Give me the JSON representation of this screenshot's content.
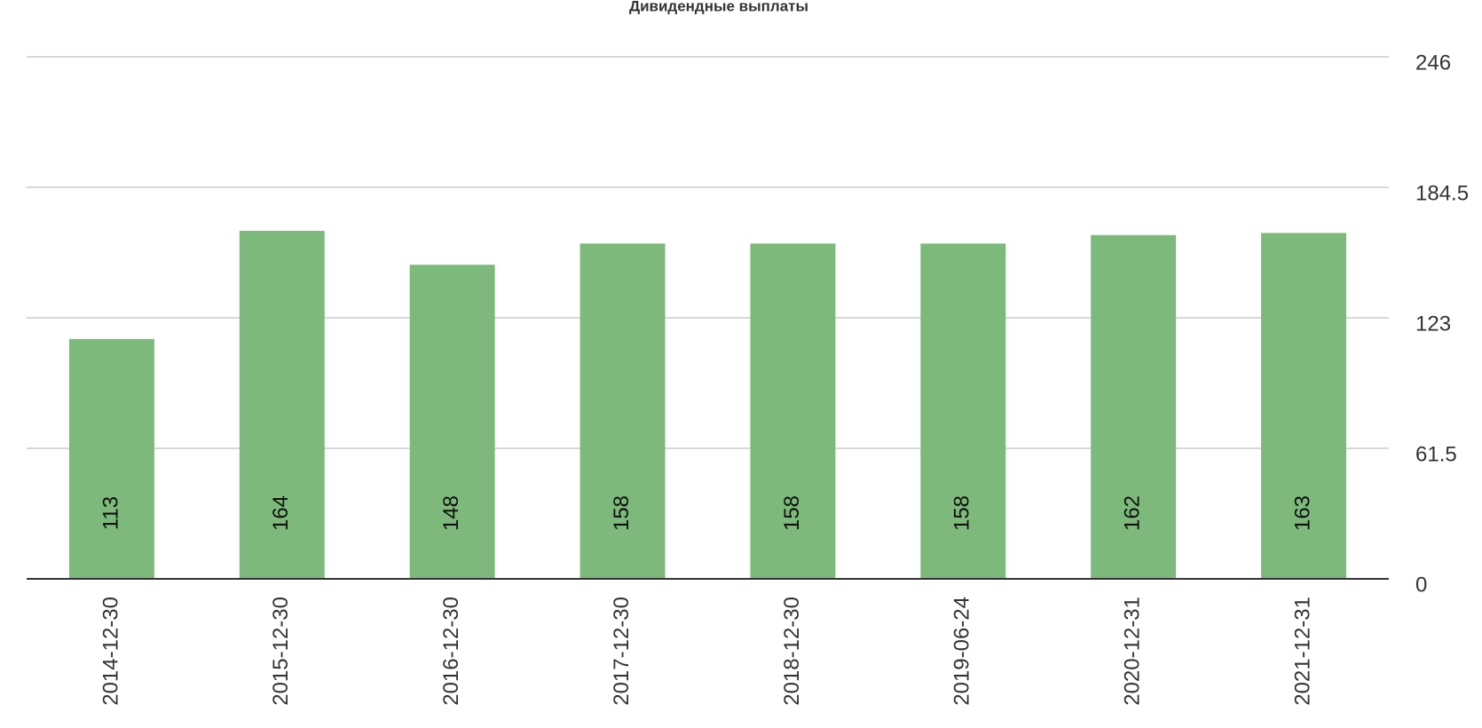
{
  "chart_data": {
    "type": "bar",
    "title": "Дивидендные выплаты",
    "categories": [
      "2014-12-30",
      "2015-12-30",
      "2016-12-30",
      "2017-12-30",
      "2018-12-30",
      "2019-06-24",
      "2020-12-31",
      "2021-12-31"
    ],
    "values": [
      113,
      164,
      148,
      158,
      158,
      158,
      162,
      163
    ],
    "color": "#7cb97a",
    "ylim": [
      0,
      246
    ],
    "yticks": [
      0,
      61.5,
      123,
      184.5,
      246
    ],
    "grid": true
  }
}
